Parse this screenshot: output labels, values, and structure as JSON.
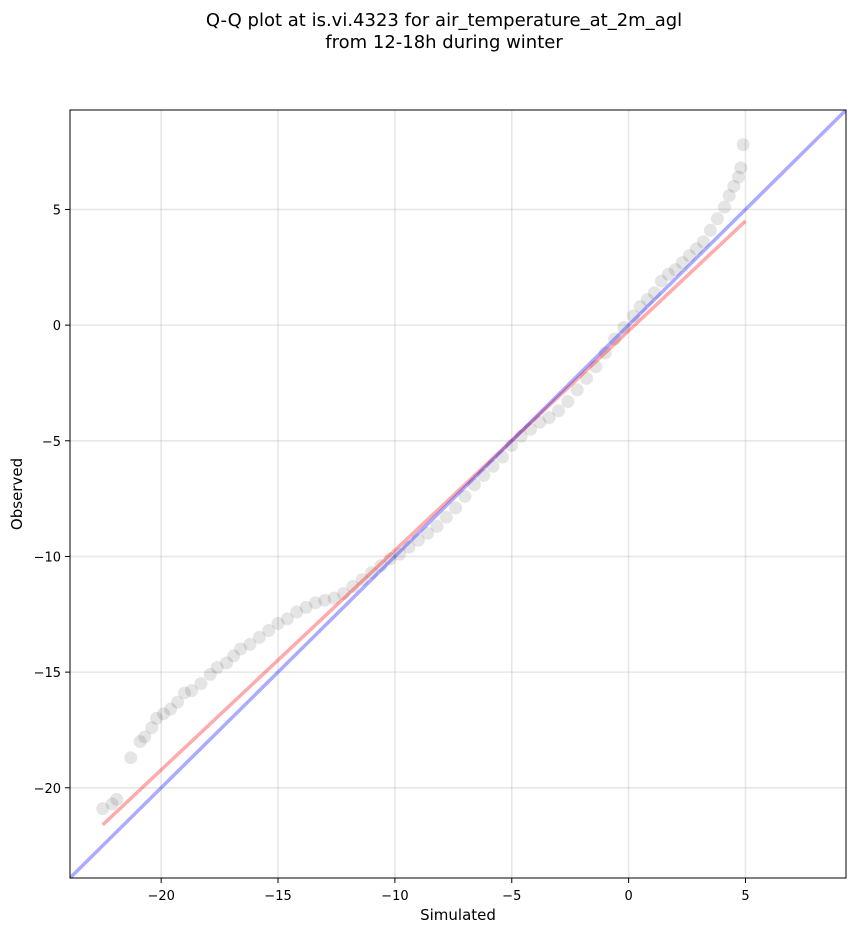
{
  "chart_data": {
    "type": "scatter",
    "title_lines": [
      "Q-Q plot at is.vi.4323 for air_temperature_at_2m_agl",
      "from 12-18h during winter"
    ],
    "xlabel": "Simulated",
    "ylabel": "Observed",
    "xlim": [
      -23.9,
      9.3
    ],
    "ylim": [
      -23.9,
      9.3
    ],
    "x_ticks": [
      -20,
      -15,
      -10,
      -5,
      0,
      5
    ],
    "y_ticks": [
      -20,
      -15,
      -10,
      -5,
      0,
      5
    ],
    "x_tick_labels": [
      "−20",
      "−15",
      "−10",
      "−5",
      "0",
      "5"
    ],
    "y_tick_labels": [
      "−20",
      "−15",
      "−10",
      "−5",
      "0",
      "5"
    ],
    "grid": true,
    "series": [
      {
        "kind": "points",
        "color": "#000000",
        "opacity": 0.1,
        "points": [
          [
            -22.5,
            -20.9
          ],
          [
            -22.1,
            -20.7
          ],
          [
            -21.9,
            -20.5
          ],
          [
            -21.3,
            -18.7
          ],
          [
            -20.9,
            -18.0
          ],
          [
            -20.7,
            -17.8
          ],
          [
            -20.4,
            -17.4
          ],
          [
            -20.2,
            -17.0
          ],
          [
            -19.9,
            -16.8
          ],
          [
            -19.6,
            -16.6
          ],
          [
            -19.3,
            -16.3
          ],
          [
            -19.0,
            -15.9
          ],
          [
            -18.7,
            -15.8
          ],
          [
            -18.3,
            -15.5
          ],
          [
            -17.9,
            -15.1
          ],
          [
            -17.6,
            -14.8
          ],
          [
            -17.2,
            -14.6
          ],
          [
            -16.9,
            -14.3
          ],
          [
            -16.6,
            -14.0
          ],
          [
            -16.2,
            -13.8
          ],
          [
            -15.8,
            -13.5
          ],
          [
            -15.4,
            -13.2
          ],
          [
            -15.0,
            -12.9
          ],
          [
            -14.6,
            -12.7
          ],
          [
            -14.2,
            -12.4
          ],
          [
            -13.8,
            -12.2
          ],
          [
            -13.4,
            -12.0
          ],
          [
            -13.0,
            -11.9
          ],
          [
            -12.6,
            -11.8
          ],
          [
            -12.2,
            -11.6
          ],
          [
            -11.8,
            -11.3
          ],
          [
            -11.4,
            -11.0
          ],
          [
            -11.0,
            -10.7
          ],
          [
            -10.6,
            -10.4
          ],
          [
            -10.2,
            -10.1
          ],
          [
            -9.8,
            -9.9
          ],
          [
            -9.4,
            -9.6
          ],
          [
            -9.0,
            -9.3
          ],
          [
            -8.6,
            -9.0
          ],
          [
            -8.2,
            -8.7
          ],
          [
            -7.8,
            -8.3
          ],
          [
            -7.4,
            -7.9
          ],
          [
            -7.0,
            -7.4
          ],
          [
            -6.6,
            -6.9
          ],
          [
            -6.2,
            -6.5
          ],
          [
            -5.8,
            -6.1
          ],
          [
            -5.4,
            -5.7
          ],
          [
            -5.0,
            -5.2
          ],
          [
            -4.6,
            -4.8
          ],
          [
            -4.2,
            -4.5
          ],
          [
            -3.8,
            -4.2
          ],
          [
            -3.4,
            -4.0
          ],
          [
            -3.0,
            -3.7
          ],
          [
            -2.6,
            -3.3
          ],
          [
            -2.2,
            -2.8
          ],
          [
            -1.8,
            -2.3
          ],
          [
            -1.4,
            -1.8
          ],
          [
            -1.0,
            -1.2
          ],
          [
            -0.6,
            -0.6
          ],
          [
            -0.2,
            -0.1
          ],
          [
            0.2,
            0.4
          ],
          [
            0.5,
            0.8
          ],
          [
            0.8,
            1.1
          ],
          [
            1.1,
            1.4
          ],
          [
            1.4,
            1.9
          ],
          [
            1.7,
            2.2
          ],
          [
            2.0,
            2.4
          ],
          [
            2.3,
            2.7
          ],
          [
            2.6,
            3.0
          ],
          [
            2.9,
            3.3
          ],
          [
            3.2,
            3.6
          ],
          [
            3.5,
            4.1
          ],
          [
            3.8,
            4.6
          ],
          [
            4.1,
            5.1
          ],
          [
            4.3,
            5.6
          ],
          [
            4.5,
            6.0
          ],
          [
            4.7,
            6.4
          ],
          [
            4.8,
            6.8
          ],
          [
            4.9,
            7.8
          ]
        ]
      },
      {
        "kind": "line",
        "name": "",
        "color": "#ff0000",
        "opacity": 0.33,
        "points": [
          [
            -22.5,
            -21.6
          ],
          [
            5.0,
            4.5
          ]
        ]
      },
      {
        "kind": "line",
        "name": "",
        "color": "#0000ff",
        "opacity": 0.33,
        "points": [
          [
            -23.9,
            -23.9
          ],
          [
            9.3,
            9.3
          ]
        ]
      }
    ]
  }
}
